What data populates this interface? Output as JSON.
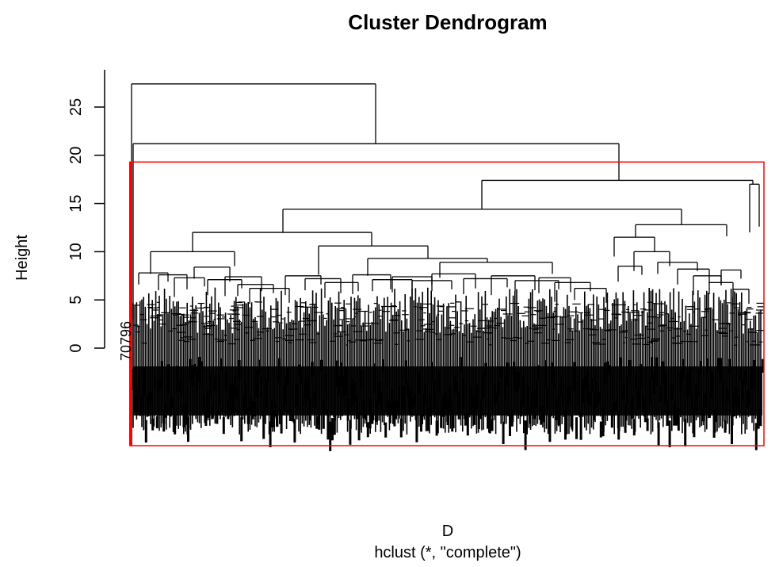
{
  "chart_data": {
    "type": "dendrogram",
    "title": "Cluster Dendrogram",
    "ylabel": "Height",
    "xlabel": "D",
    "subtitle": "hclust (*, \"complete\")",
    "method": "complete",
    "ylim": [
      0,
      27.5
    ],
    "yticks": [
      0,
      5,
      10,
      15,
      20,
      25
    ],
    "leaf_label_visible": "70796",
    "merges": [
      {
        "name": "root",
        "height": 27.4,
        "children": [
          "left-singleton",
          "n21"
        ]
      },
      {
        "name": "n21",
        "height": 21.2,
        "children": [
          "left-singleton-2",
          "n17"
        ]
      },
      {
        "name": "n17",
        "height": 17.4,
        "children": [
          "n14",
          "right-group"
        ]
      },
      {
        "name": "n14",
        "height": 14.4,
        "children": [
          "n12",
          "right-mid"
        ]
      },
      {
        "name": "n12",
        "height": 12.0,
        "children": [
          "n10",
          "n11"
        ]
      },
      {
        "name": "n10",
        "height": 10.0,
        "children": [
          "leaf-block-1",
          "leaf-block-2"
        ]
      },
      {
        "name": "n11",
        "height": 10.6,
        "children": [
          "n9",
          "leaf-block-6"
        ]
      },
      {
        "name": "n9",
        "height": 9.3,
        "children": [
          "leaf-block-3",
          "n9b"
        ]
      },
      {
        "name": "n9b",
        "height": 8.9,
        "children": [
          "leaf-block-4",
          "leaf-block-5"
        ]
      },
      {
        "name": "right-mid",
        "height": 12.8,
        "children": [
          "n11r",
          "leaf-block-8"
        ]
      },
      {
        "name": "n11r",
        "height": 11.5,
        "children": [
          "leaf-block-7",
          "leaf-block-7b"
        ]
      },
      {
        "name": "right-group",
        "height": 17.0,
        "children": [
          "leaf-block-9",
          "leaf-block-10"
        ]
      }
    ],
    "cluster_cut_box": {
      "height": 19.3,
      "color": "#ff0000"
    },
    "line_color": "#000000"
  }
}
